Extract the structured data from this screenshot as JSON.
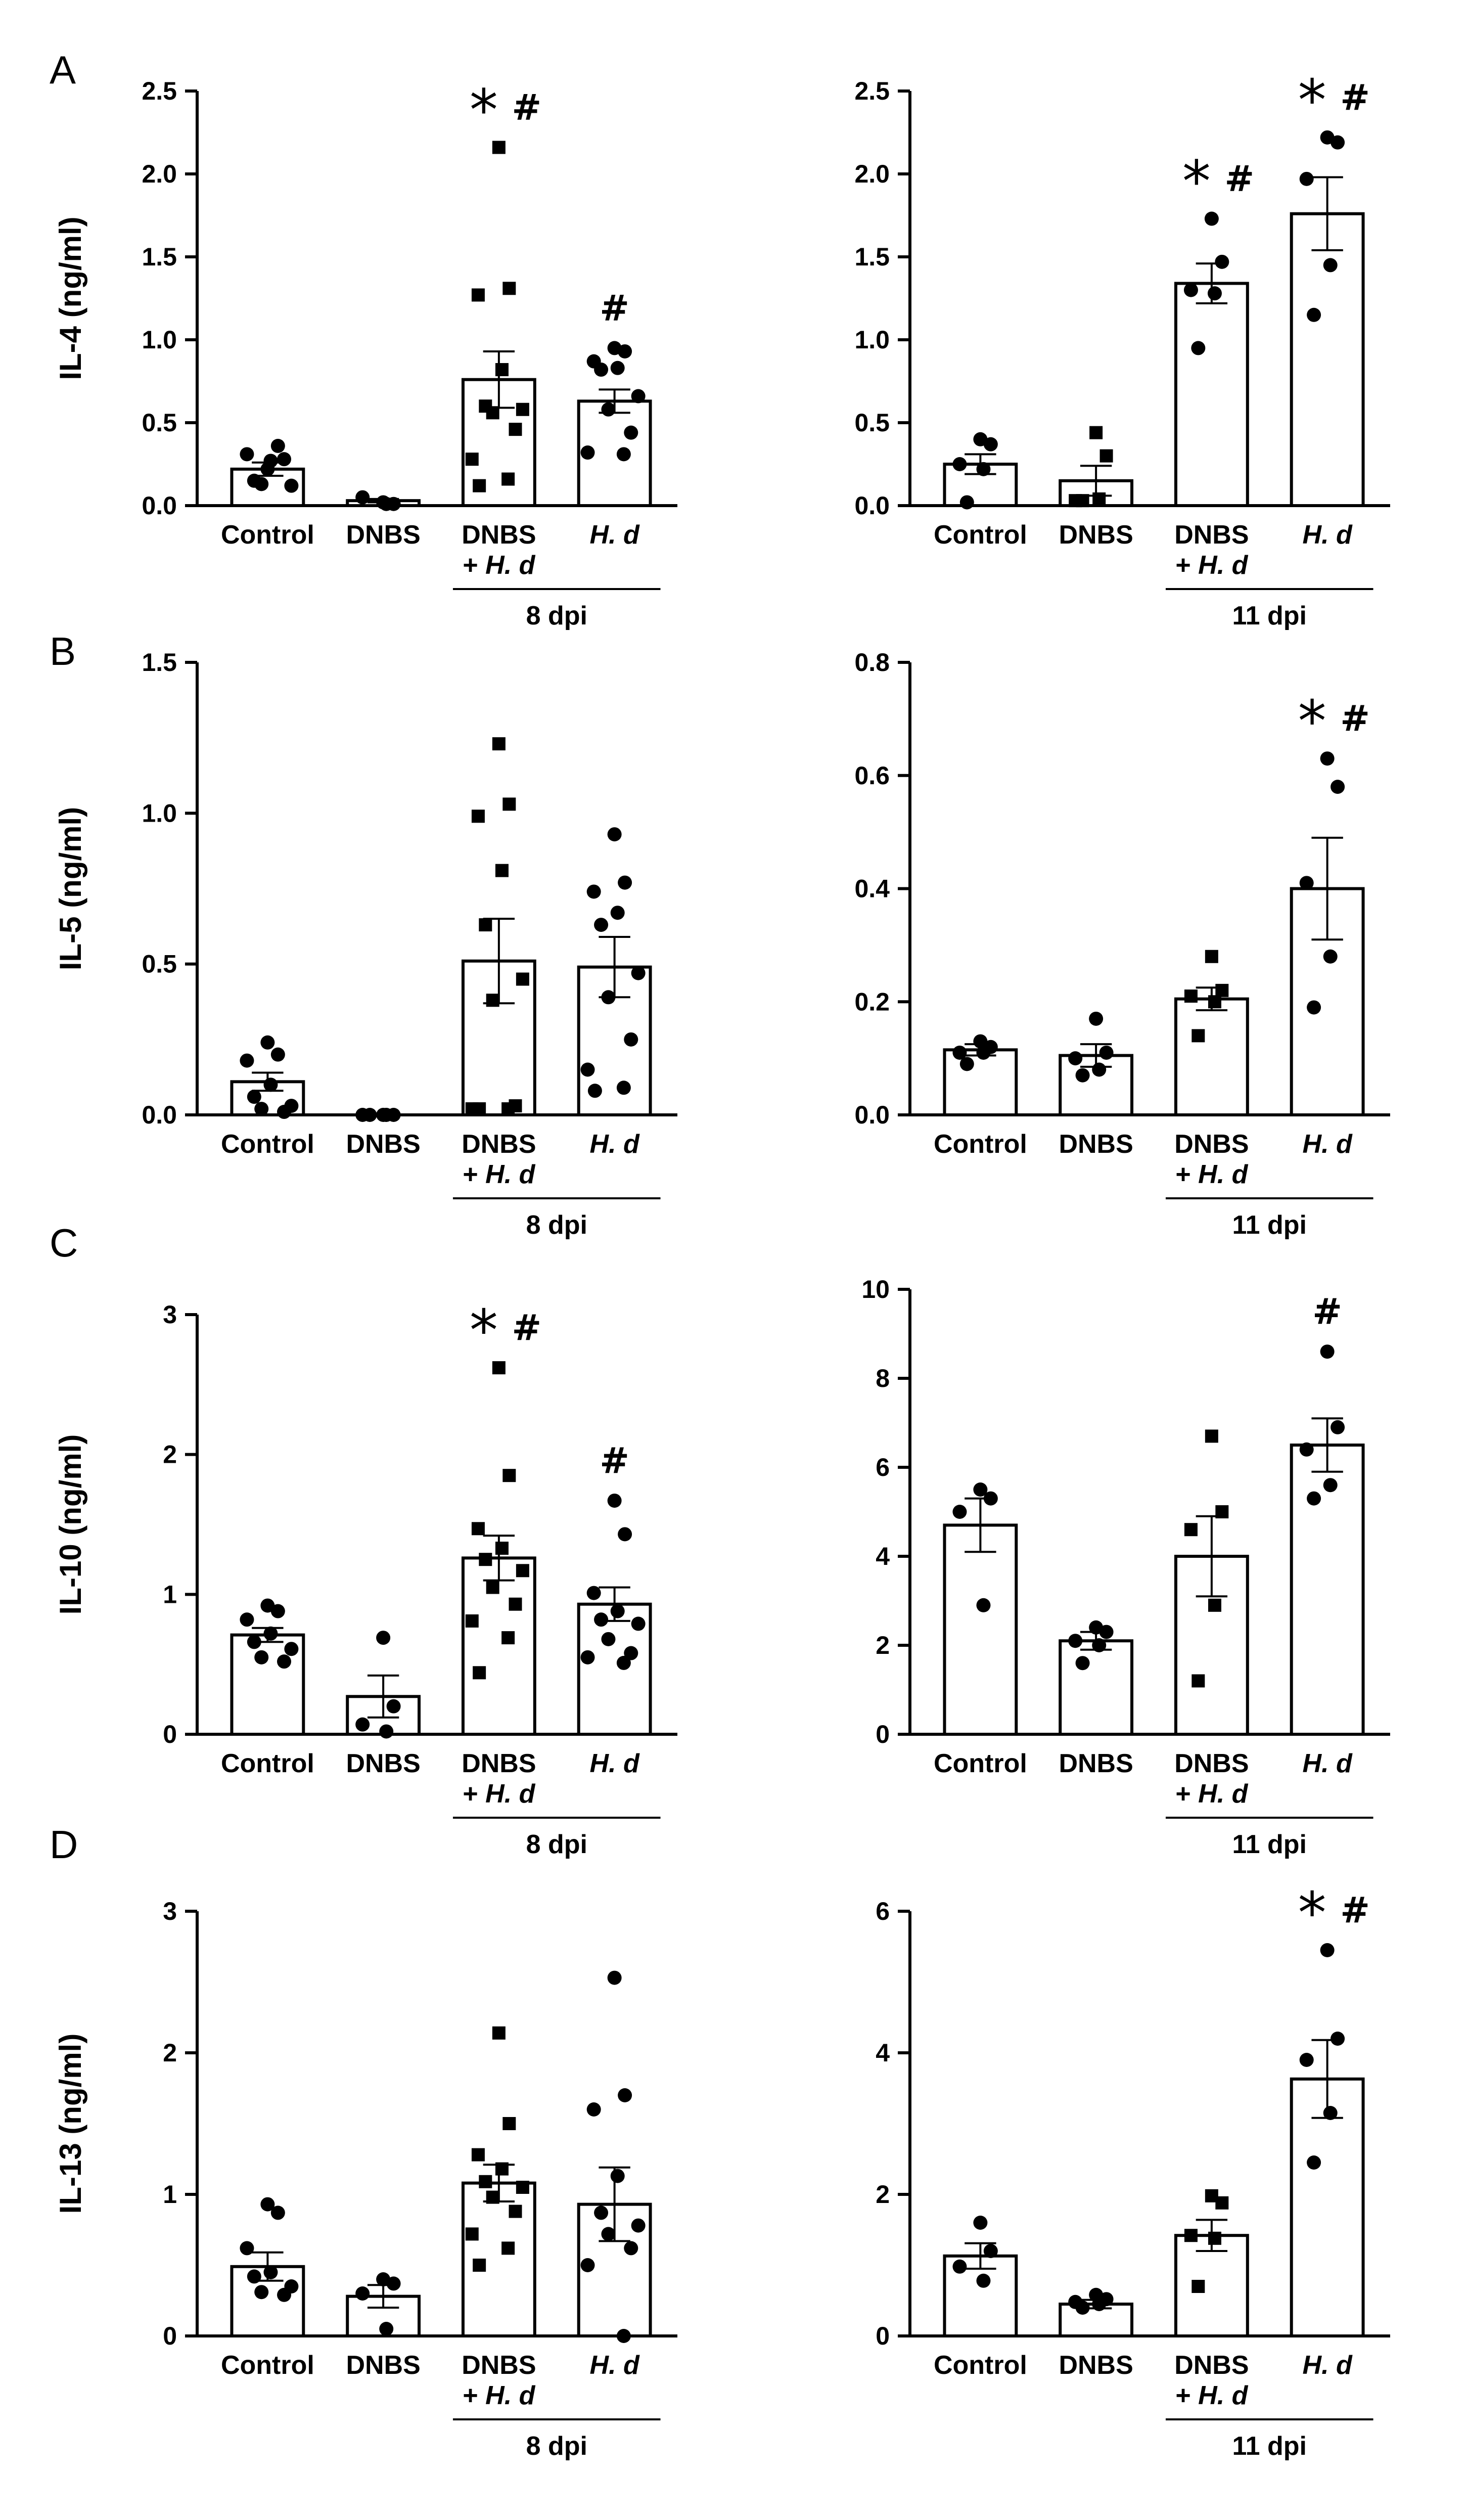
{
  "figure": {
    "colors": {
      "ink": "#000000",
      "bar_fill": "#ffffff"
    },
    "panel_letters": [
      "A",
      "B",
      "C",
      "D"
    ],
    "group_labels": {
      "left": "8 dpi",
      "right": "11 dpi"
    }
  },
  "chart_data": [
    {
      "type": "bar",
      "panel": "A",
      "title": "",
      "ylabel": "IL-4 (ng/ml)",
      "xlabel": "8 dpi",
      "categories": [
        {
          "line1": "Control",
          "line2": ""
        },
        {
          "line1": "DNBS",
          "line2": ""
        },
        {
          "line1": "DNBS",
          "line2": "+ H. d"
        },
        {
          "line1": "H. d",
          "line2": ""
        }
      ],
      "ylim": [
        0,
        2.5
      ],
      "yticks": [
        "0.0",
        "0.5",
        "1.0",
        "1.5",
        "2.0",
        "2.5"
      ],
      "means": [
        0.22,
        0.03,
        0.76,
        0.63
      ],
      "sem": [
        0.04,
        0.01,
        0.17,
        0.07
      ],
      "points": [
        [
          0.22,
          0.36,
          0.31,
          0.27,
          0.15,
          0.12,
          0.13,
          0.28
        ],
        [
          0.02,
          0.01,
          0.05,
          0.01
        ],
        [
          2.16,
          1.31,
          1.27,
          0.82,
          0.6,
          0.58,
          0.56,
          0.46,
          0.28,
          0.16,
          0.12
        ],
        [
          0.95,
          0.93,
          0.87,
          0.83,
          0.82,
          0.66,
          0.58,
          0.44,
          0.32,
          0.31
        ]
      ],
      "markers": [
        "circle",
        "circle",
        "square",
        "circle"
      ],
      "significance": [
        "",
        "",
        "* #",
        "#"
      ]
    },
    {
      "type": "bar",
      "panel": "A",
      "title": "",
      "ylabel": "",
      "xlabel": "11 dpi",
      "categories": [
        {
          "line1": "Control",
          "line2": ""
        },
        {
          "line1": "DNBS",
          "line2": ""
        },
        {
          "line1": "DNBS",
          "line2": "+ H. d"
        },
        {
          "line1": "H. d",
          "line2": ""
        }
      ],
      "ylim": [
        0,
        2.5
      ],
      "yticks": [
        "0.0",
        "0.5",
        "1.0",
        "1.5",
        "2.0",
        "2.5"
      ],
      "means": [
        0.25,
        0.15,
        1.34,
        1.76
      ],
      "sem": [
        0.06,
        0.09,
        0.12,
        0.22
      ],
      "points": [
        [
          0.4,
          0.37,
          0.25,
          0.22,
          0.02
        ],
        [
          0.44,
          0.3,
          0.03,
          0.04,
          0.03
        ],
        [
          1.73,
          1.47,
          1.3,
          1.28,
          0.95
        ],
        [
          2.22,
          2.19,
          1.97,
          1.45,
          1.15
        ]
      ],
      "markers": [
        "circle",
        "square",
        "circle",
        "circle"
      ],
      "significance": [
        "",
        "",
        "* #",
        "* #"
      ]
    },
    {
      "type": "bar",
      "panel": "B",
      "title": "",
      "ylabel": "IL-5 (ng/ml)",
      "xlabel": "8 dpi",
      "categories": [
        {
          "line1": "Control",
          "line2": ""
        },
        {
          "line1": "DNBS",
          "line2": ""
        },
        {
          "line1": "DNBS",
          "line2": "+ H. d"
        },
        {
          "line1": "H. d",
          "line2": ""
        }
      ],
      "ylim": [
        0,
        1.5
      ],
      "yticks": [
        "0.0",
        "0.5",
        "1.0",
        "1.5"
      ],
      "means": [
        0.11,
        0.0,
        0.51,
        0.49
      ],
      "sem": [
        0.03,
        0.0,
        0.14,
        0.1
      ],
      "points": [
        [
          0.24,
          0.2,
          0.18,
          0.1,
          0.06,
          0.03,
          0.02,
          0.01
        ],
        [
          0.0,
          0.0,
          0.0,
          0.0,
          0.0
        ],
        [
          1.23,
          1.03,
          0.99,
          0.81,
          0.63,
          0.45,
          0.38,
          0.03,
          0.02,
          0.02,
          0.02
        ],
        [
          0.93,
          0.77,
          0.74,
          0.67,
          0.63,
          0.47,
          0.39,
          0.25,
          0.15,
          0.09,
          0.08
        ]
      ],
      "markers": [
        "circle",
        "circle",
        "square",
        "circle"
      ],
      "significance": [
        "",
        "",
        "",
        ""
      ]
    },
    {
      "type": "bar",
      "panel": "B",
      "title": "",
      "ylabel": "",
      "xlabel": "11 dpi",
      "categories": [
        {
          "line1": "Control",
          "line2": ""
        },
        {
          "line1": "DNBS",
          "line2": ""
        },
        {
          "line1": "DNBS",
          "line2": "+ H. d"
        },
        {
          "line1": "H. d",
          "line2": ""
        }
      ],
      "ylim": [
        0,
        0.8
      ],
      "yticks": [
        "0.0",
        "0.2",
        "0.4",
        "0.6",
        "0.8"
      ],
      "means": [
        0.115,
        0.105,
        0.205,
        0.4
      ],
      "sem": [
        0.01,
        0.02,
        0.02,
        0.09
      ],
      "points": [
        [
          0.13,
          0.12,
          0.11,
          0.11,
          0.09
        ],
        [
          0.17,
          0.11,
          0.1,
          0.08,
          0.07
        ],
        [
          0.28,
          0.22,
          0.21,
          0.2,
          0.14
        ],
        [
          0.63,
          0.58,
          0.41,
          0.28,
          0.19
        ]
      ],
      "markers": [
        "circle",
        "circle",
        "square",
        "circle"
      ],
      "significance": [
        "",
        "",
        "",
        "* #"
      ]
    },
    {
      "type": "bar",
      "panel": "C",
      "title": "",
      "ylabel": "IL-10 (ng/ml)",
      "xlabel": "8 dpi",
      "categories": [
        {
          "line1": "Control",
          "line2": ""
        },
        {
          "line1": "DNBS",
          "line2": ""
        },
        {
          "line1": "DNBS",
          "line2": "+ H. d"
        },
        {
          "line1": "H. d",
          "line2": ""
        }
      ],
      "ylim": [
        0,
        3
      ],
      "yticks": [
        "0",
        "1",
        "2",
        "3"
      ],
      "means": [
        0.71,
        0.27,
        1.26,
        0.93
      ],
      "sem": [
        0.05,
        0.15,
        0.16,
        0.12
      ],
      "points": [
        [
          0.92,
          0.88,
          0.82,
          0.72,
          0.66,
          0.61,
          0.55,
          0.52
        ],
        [
          0.69,
          0.2,
          0.07,
          0.02
        ],
        [
          2.62,
          1.85,
          1.47,
          1.33,
          1.25,
          1.17,
          1.05,
          0.93,
          0.81,
          0.69,
          0.44
        ],
        [
          1.67,
          1.43,
          1.01,
          0.88,
          0.82,
          0.79,
          0.68,
          0.58,
          0.55,
          0.51
        ]
      ],
      "markers": [
        "circle",
        "circle",
        "square",
        "circle"
      ],
      "significance": [
        "",
        "",
        "* #",
        "#"
      ]
    },
    {
      "type": "bar",
      "panel": "C",
      "title": "",
      "ylabel": "",
      "xlabel": "11 dpi",
      "categories": [
        {
          "line1": "Control",
          "line2": ""
        },
        {
          "line1": "DNBS",
          "line2": ""
        },
        {
          "line1": "DNBS",
          "line2": "+ H. d"
        },
        {
          "line1": "H. d",
          "line2": ""
        }
      ],
      "ylim": [
        0,
        10
      ],
      "yticks": [
        "0",
        "2",
        "4",
        "6",
        "8",
        "10"
      ],
      "means": [
        4.7,
        2.1,
        4.0,
        6.5
      ],
      "sem": [
        0.6,
        0.2,
        0.9,
        0.6
      ],
      "points": [
        [
          5.5,
          5.3,
          5.0,
          2.9
        ],
        [
          2.4,
          2.3,
          2.1,
          2.0,
          1.6
        ],
        [
          6.7,
          5.0,
          4.6,
          2.9,
          1.2
        ],
        [
          8.6,
          6.9,
          6.4,
          5.6,
          5.3
        ]
      ],
      "markers": [
        "circle",
        "circle",
        "square",
        "circle"
      ],
      "significance": [
        "",
        "",
        "",
        "#"
      ]
    },
    {
      "type": "bar",
      "panel": "D",
      "title": "",
      "ylabel": "IL-13 (ng/ml)",
      "xlabel": "8 dpi",
      "categories": [
        {
          "line1": "Control",
          "line2": ""
        },
        {
          "line1": "DNBS",
          "line2": ""
        },
        {
          "line1": "DNBS",
          "line2": "+ H. d"
        },
        {
          "line1": "H. d",
          "line2": ""
        }
      ],
      "ylim": [
        0,
        3
      ],
      "yticks": [
        "0",
        "1",
        "2",
        "3"
      ],
      "means": [
        0.49,
        0.28,
        1.08,
        0.93
      ],
      "sem": [
        0.1,
        0.08,
        0.13,
        0.26
      ],
      "points": [
        [
          0.93,
          0.87,
          0.62,
          0.45,
          0.42,
          0.35,
          0.31,
          0.29
        ],
        [
          0.4,
          0.37,
          0.3,
          0.05
        ],
        [
          2.14,
          1.5,
          1.28,
          1.18,
          1.09,
          1.05,
          0.98,
          0.88,
          0.72,
          0.62,
          0.5
        ],
        [
          2.53,
          1.7,
          1.6,
          1.13,
          0.87,
          0.78,
          0.72,
          0.62,
          0.5,
          0.0
        ]
      ],
      "markers": [
        "circle",
        "circle",
        "square",
        "circle"
      ],
      "significance": [
        "",
        "",
        "",
        ""
      ]
    },
    {
      "type": "bar",
      "panel": "D",
      "title": "",
      "ylabel": "",
      "xlabel": "11 dpi",
      "categories": [
        {
          "line1": "Control",
          "line2": ""
        },
        {
          "line1": "DNBS",
          "line2": ""
        },
        {
          "line1": "DNBS",
          "line2": "+ H. d"
        },
        {
          "line1": "H. d",
          "line2": ""
        }
      ],
      "ylim": [
        0,
        6
      ],
      "yticks": [
        "0",
        "2",
        "4",
        "6"
      ],
      "means": [
        1.13,
        0.45,
        1.42,
        3.63
      ],
      "sem": [
        0.18,
        0.06,
        0.22,
        0.55
      ],
      "points": [
        [
          1.6,
          1.2,
          0.98,
          0.78
        ],
        [
          0.58,
          0.52,
          0.48,
          0.45,
          0.4
        ],
        [
          1.98,
          1.88,
          1.42,
          1.38,
          0.7
        ],
        [
          5.45,
          4.2,
          3.9,
          3.15,
          2.45
        ]
      ],
      "markers": [
        "circle",
        "circle",
        "square",
        "circle"
      ],
      "significance": [
        "",
        "",
        "",
        "* #"
      ]
    }
  ]
}
